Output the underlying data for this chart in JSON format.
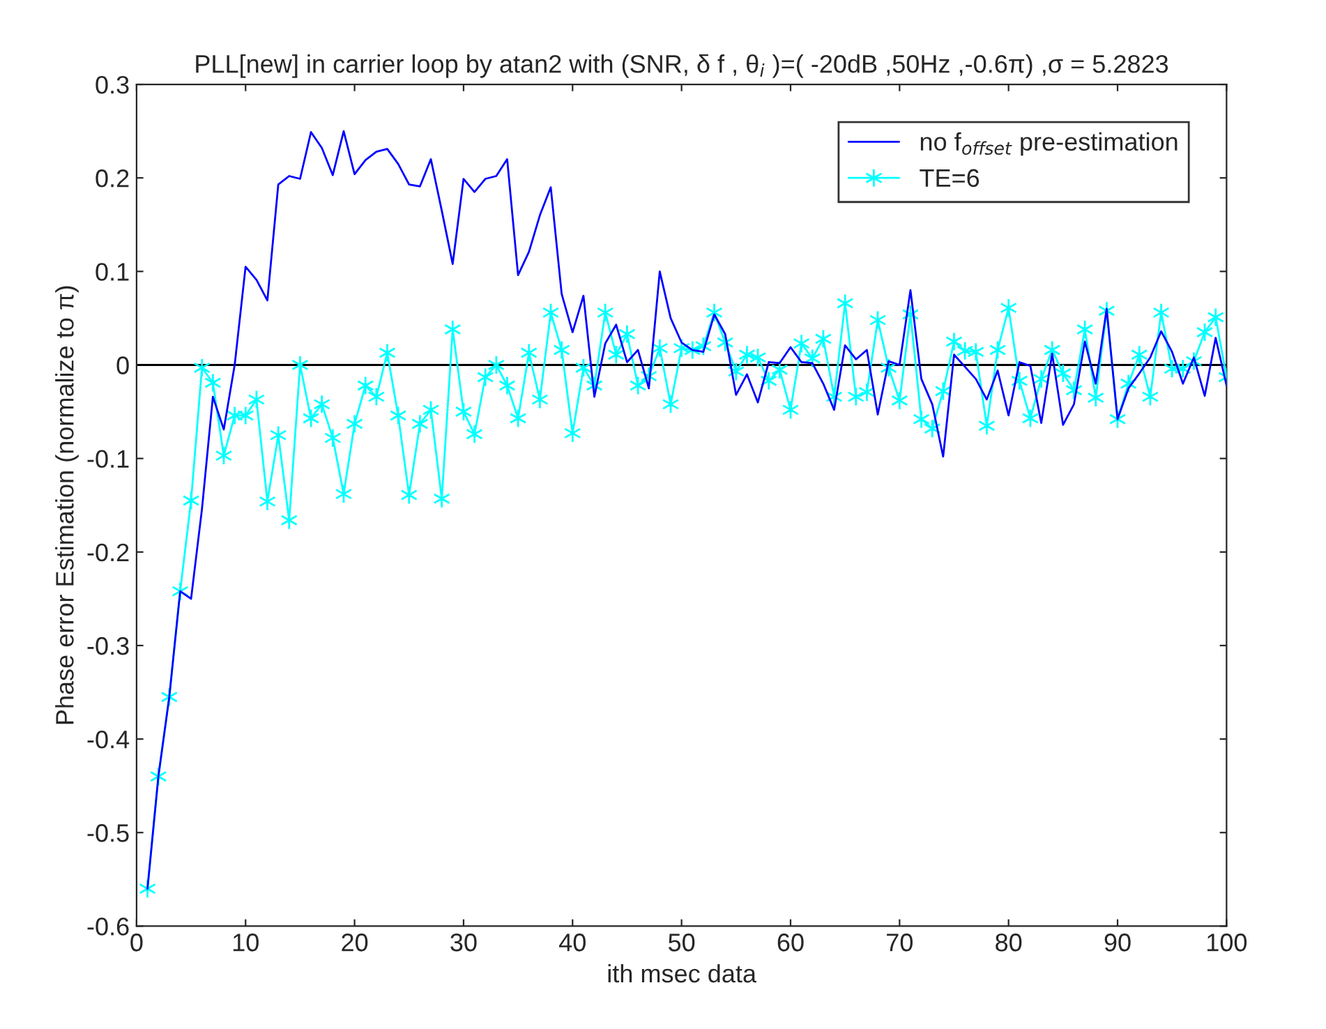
{
  "chart_data": {
    "type": "line",
    "title": "PLL[new] in carrier loop by atan2 with (SNR, δ f , θ$_{i}$ )=( -20dB ,50Hz ,-0.6π) ,σ = 5.2823",
    "xlabel": "ith msec data",
    "ylabel": "Phase error Estimation (normalize to π)",
    "x": [
      1,
      2,
      3,
      4,
      5,
      6,
      7,
      8,
      9,
      10,
      11,
      12,
      13,
      14,
      15,
      16,
      17,
      18,
      19,
      20,
      21,
      22,
      23,
      24,
      25,
      26,
      27,
      28,
      29,
      30,
      31,
      32,
      33,
      34,
      35,
      36,
      37,
      38,
      39,
      40,
      41,
      42,
      43,
      44,
      45,
      46,
      47,
      48,
      49,
      50,
      51,
      52,
      53,
      54,
      55,
      56,
      57,
      58,
      59,
      60,
      61,
      62,
      63,
      64,
      65,
      66,
      67,
      68,
      69,
      70,
      71,
      72,
      73,
      74,
      75,
      76,
      77,
      78,
      79,
      80,
      81,
      82,
      83,
      84,
      85,
      86,
      87,
      88,
      89,
      90,
      91,
      92,
      93,
      94,
      95,
      96,
      97,
      98,
      99,
      100
    ],
    "series": [
      {
        "name": "no f$_{offset}$ pre-estimation",
        "color": "#0000ff",
        "marker": "none",
        "values": [
          -0.56,
          -0.44,
          -0.355,
          -0.242,
          -0.25,
          -0.154,
          -0.034,
          -0.069,
          0.0,
          0.105,
          0.091,
          0.069,
          0.193,
          0.202,
          0.199,
          0.249,
          0.232,
          0.203,
          0.25,
          0.204,
          0.219,
          0.228,
          0.231,
          0.215,
          0.193,
          0.191,
          0.22,
          0.165,
          0.108,
          0.199,
          0.185,
          0.199,
          0.202,
          0.22,
          0.096,
          0.121,
          0.16,
          0.19,
          0.076,
          0.035,
          0.074,
          -0.034,
          0.023,
          0.043,
          0.003,
          0.016,
          -0.025,
          0.1,
          0.05,
          0.024,
          0.016,
          0.014,
          0.054,
          0.033,
          -0.032,
          -0.01,
          -0.04,
          0.003,
          0.002,
          0.019,
          0.003,
          0.002,
          -0.02,
          -0.048,
          0.021,
          0.006,
          0.016,
          -0.053,
          0.004,
          0.0,
          0.08,
          -0.015,
          -0.042,
          -0.098,
          0.011,
          -0.002,
          -0.015,
          -0.037,
          -0.006,
          -0.054,
          0.003,
          -0.001,
          -0.062,
          0.012,
          -0.064,
          -0.042,
          0.025,
          -0.02,
          0.06,
          -0.058,
          -0.025,
          -0.009,
          0.008,
          0.036,
          0.014,
          -0.02,
          0.008,
          -0.033,
          0.029,
          -0.022
        ]
      },
      {
        "name": "TE=6",
        "color": "#00ffff",
        "marker": "cross",
        "values": [
          -0.56,
          -0.44,
          -0.355,
          -0.242,
          -0.145,
          -0.003,
          -0.019,
          -0.097,
          -0.054,
          -0.054,
          -0.037,
          -0.146,
          -0.075,
          -0.166,
          0.0,
          -0.057,
          -0.042,
          -0.078,
          -0.138,
          -0.063,
          -0.022,
          -0.034,
          0.013,
          -0.054,
          -0.139,
          -0.063,
          -0.048,
          -0.143,
          0.038,
          -0.05,
          -0.074,
          -0.013,
          0.0,
          -0.022,
          -0.057,
          0.013,
          -0.037,
          0.056,
          0.016,
          -0.073,
          -0.003,
          -0.022,
          0.056,
          0.011,
          0.033,
          -0.022,
          -0.012,
          0.018,
          -0.042,
          0.018,
          0.016,
          0.02,
          0.056,
          0.024,
          -0.007,
          0.011,
          0.008,
          -0.017,
          -0.005,
          -0.048,
          0.023,
          0.007,
          0.028,
          -0.034,
          0.066,
          -0.034,
          -0.029,
          0.048,
          -0.003,
          -0.038,
          0.054,
          -0.058,
          -0.068,
          -0.028,
          0.025,
          0.015,
          0.014,
          -0.065,
          0.016,
          0.061,
          -0.017,
          -0.057,
          -0.015,
          0.016,
          -0.009,
          -0.027,
          0.038,
          -0.035,
          0.058,
          -0.058,
          -0.02,
          0.011,
          -0.034,
          0.056,
          -0.004,
          -0.004,
          0.004,
          0.035,
          0.051,
          -0.013
        ]
      }
    ],
    "ref_lines": [
      {
        "axis": "y",
        "value": 0,
        "color": "#000000",
        "line_style": "solid"
      }
    ],
    "xlim": [
      0,
      100
    ],
    "xticks": [
      0,
      10,
      20,
      30,
      40,
      50,
      60,
      70,
      80,
      90,
      100
    ],
    "ylim": [
      -0.6,
      0.3
    ],
    "yticks": [
      -0.6,
      -0.5,
      -0.4,
      -0.3,
      -0.2,
      -0.1,
      0,
      0.1,
      0.2,
      0.3
    ],
    "grid": false,
    "legend": "top right",
    "line_style": "solid"
  }
}
